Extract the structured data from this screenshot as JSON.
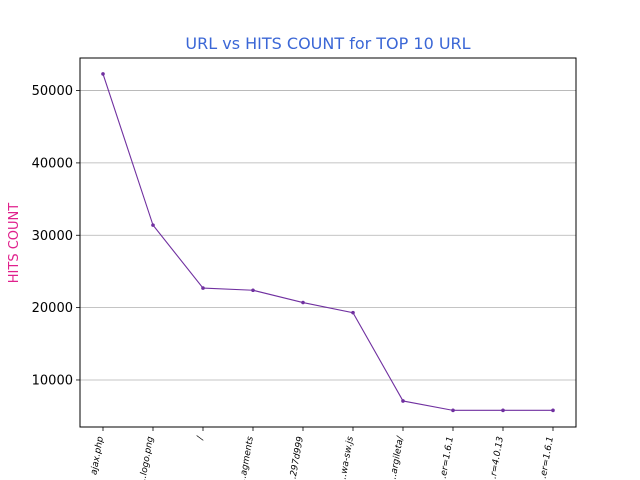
{
  "chart_data": {
    "type": "line",
    "title": "URL vs HITS COUNT for TOP 10 URL",
    "xlabel": "",
    "ylabel": "HITS COUNT",
    "categories": [
      "ajax.php",
      "...logo.png",
      "/",
      "...agments",
      "...297d999",
      "...wa-sw.js",
      "...argileta/",
      "...er=1.6.1",
      "...r=4.0.13",
      "...er=1.6.1"
    ],
    "series": [
      {
        "values": [
          52300,
          31400,
          22700,
          22400,
          20700,
          19300,
          7100,
          5800,
          5800,
          5800
        ]
      }
    ],
    "ylim": [
      3500,
      54500
    ],
    "yticks": [
      10000,
      20000,
      30000,
      40000,
      50000
    ],
    "grid": "y-axis horizontal lines",
    "legend": "none",
    "colors": {
      "line": "#7030a0",
      "title": "#3b67d6",
      "ylabel": "#e0208c",
      "grid": "#b0b0b0",
      "axes": "#000000"
    }
  }
}
